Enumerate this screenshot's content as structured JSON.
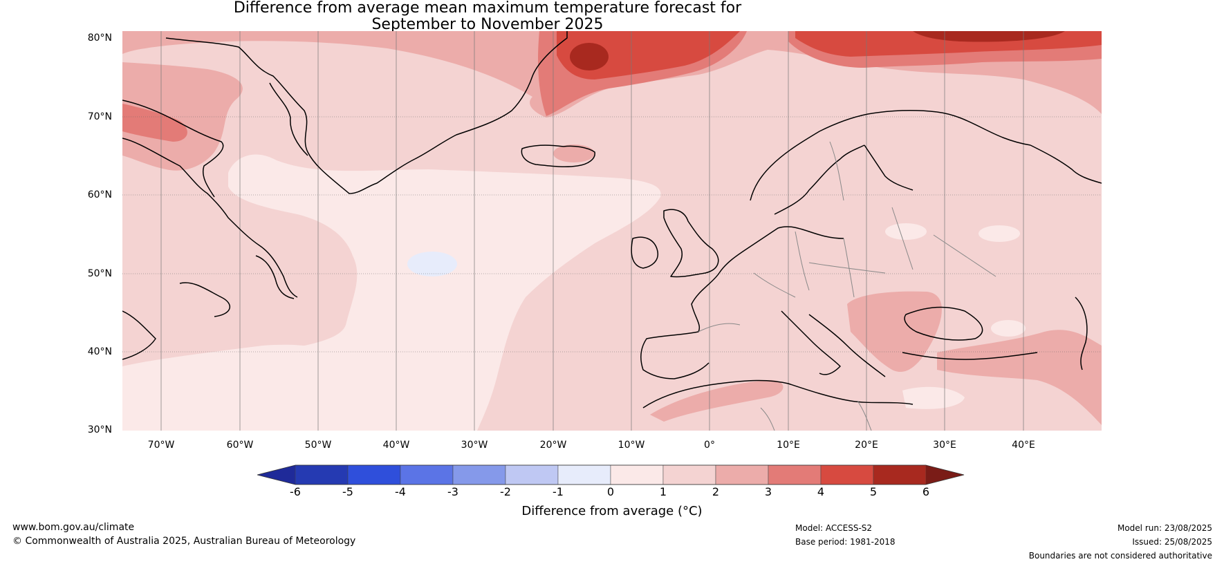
{
  "title": {
    "line1": "Difference from average mean maximum temperature forecast for",
    "line2": "September to November 2025"
  },
  "map": {
    "lat_labels": [
      "80°N",
      "70°N",
      "60°N",
      "50°N",
      "40°N",
      "30°N"
    ],
    "lon_labels": [
      "70°W",
      "60°W",
      "50°W",
      "40°W",
      "30°W",
      "20°W",
      "10°W",
      "0°",
      "10°E",
      "20°E",
      "30°E",
      "40°E"
    ],
    "extent": {
      "lon_min": -75,
      "lon_max": 50,
      "lat_min": 30,
      "lat_max": 81
    }
  },
  "colorbar": {
    "ticks": [
      "-6",
      "-5",
      "-4",
      "-3",
      "-2",
      "-1",
      "0",
      "1",
      "2",
      "3",
      "4",
      "5",
      "6"
    ],
    "colors": [
      "#1f2a99",
      "#253ab2",
      "#2f4fdb",
      "#5b74e6",
      "#8599ea",
      "#bfc8f3",
      "#e7ecfb",
      "#fbe9e8",
      "#f4d3d2",
      "#ecacaa",
      "#e37b77",
      "#d74a40",
      "#a8291f",
      "#7a1c17"
    ],
    "label": "Difference from average (°C)"
  },
  "footer": {
    "url": "www.bom.gov.au/climate",
    "copyright": "© Commonwealth of Australia 2025, Australian Bureau of Meteorology",
    "model": "Model: ACCESS-S2",
    "base_period": "Base period: 1981-2018",
    "model_run": "Model run: 23/08/2025",
    "issued": "Issued: 25/08/2025",
    "disclaimer": "Boundaries are not considered authoritative"
  }
}
